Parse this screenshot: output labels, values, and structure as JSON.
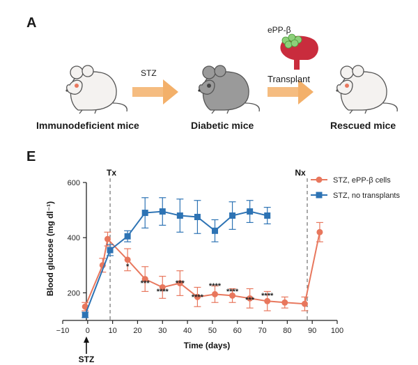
{
  "panel_a": {
    "letter": "A",
    "stage_labels": [
      "Immunodeficient mice",
      "Diabetic mice",
      "Rescued mice"
    ],
    "arrow1_label": "STZ",
    "organ_label": "ePP-β",
    "arrow2_label": "Transplant",
    "colors": {
      "arrow": "#f3b06a",
      "mouse_white": "#f4f2f0",
      "mouse_gray": "#9a9a9a",
      "organ": "#c92c3d",
      "cells": "#8dd07a"
    }
  },
  "panel_e": {
    "letter": "E",
    "tx_label": "Tx",
    "nx_label": "Nx",
    "stz_marker_label": "STZ"
  },
  "chart_data": {
    "type": "line",
    "xlabel": "Time (days)",
    "ylabel": "Blood glucose (mg dl⁻¹)",
    "xlim": [
      -10,
      100
    ],
    "ylim": [
      100,
      600
    ],
    "xticks": [
      -10,
      0,
      10,
      20,
      30,
      40,
      50,
      60,
      70,
      80,
      90,
      100
    ],
    "yticks": [
      200,
      400,
      600
    ],
    "legend_position": "top-right",
    "vlines": [
      {
        "x": 9,
        "label": "Tx"
      },
      {
        "x": 88,
        "label": "Nx"
      }
    ],
    "series": [
      {
        "name": "STZ, ePP-β cells",
        "color": "#e8775d",
        "marker": "circle",
        "x": [
          -1,
          6,
          8,
          16,
          23,
          30,
          37,
          44,
          51,
          58,
          65,
          72,
          79,
          87,
          93
        ],
        "y": [
          150,
          300,
          395,
          320,
          250,
          220,
          235,
          185,
          195,
          190,
          180,
          170,
          165,
          160,
          420
        ],
        "err": [
          15,
          25,
          25,
          40,
          45,
          40,
          45,
          35,
          30,
          25,
          35,
          35,
          20,
          25,
          35
        ]
      },
      {
        "name": "STZ, no transplants",
        "color": "#2d73b4",
        "marker": "square",
        "x": [
          -1,
          9,
          16,
          23,
          30,
          37,
          44,
          51,
          58,
          65,
          72
        ],
        "y": [
          120,
          355,
          405,
          490,
          495,
          480,
          475,
          425,
          480,
          495,
          480
        ],
        "err": [
          10,
          20,
          20,
          55,
          50,
          60,
          60,
          40,
          50,
          40,
          30
        ]
      }
    ],
    "annotations": [
      {
        "x": 16,
        "text": "*"
      },
      {
        "x": 23,
        "text": "***"
      },
      {
        "x": 30,
        "text": "****"
      },
      {
        "x": 37,
        "text": "***"
      },
      {
        "x": 44,
        "text": "****"
      },
      {
        "x": 51,
        "text": "****"
      },
      {
        "x": 58,
        "text": "****"
      },
      {
        "x": 65,
        "text": "***"
      },
      {
        "x": 72,
        "text": "****"
      }
    ]
  }
}
